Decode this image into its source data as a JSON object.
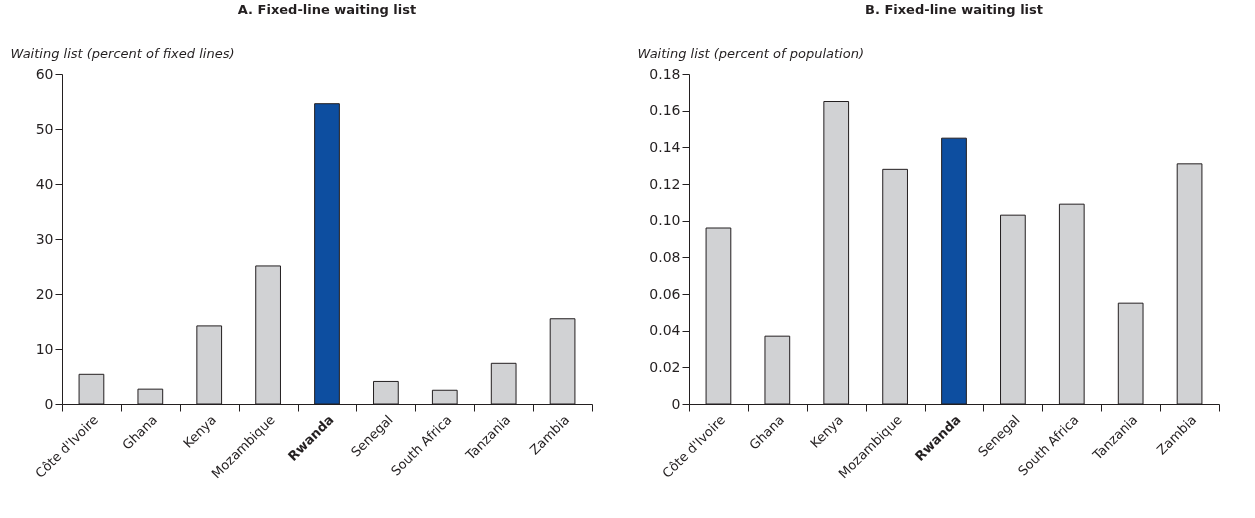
{
  "chart_data": [
    {
      "type": "bar",
      "title": "A. Fixed-line waiting list",
      "ylabel": "Waiting list (percent of fixed lines)",
      "categories": [
        "Côte d'Ivoire",
        "Ghana",
        "Kenya",
        "Mozambique",
        "Rwanda",
        "Senegal",
        "South Africa",
        "Tanzania",
        "Zambia"
      ],
      "values": [
        5.4,
        2.7,
        14.2,
        25.1,
        54.6,
        4.1,
        2.5,
        7.4,
        15.5
      ],
      "colors": [
        "#d1d2d4",
        "#d1d2d4",
        "#d1d2d4",
        "#d1d2d4",
        "#0d4ea0",
        "#d1d2d4",
        "#d1d2d4",
        "#d1d2d4",
        "#d1d2d4"
      ],
      "ylim": [
        0,
        60
      ],
      "yticks": [
        0,
        10,
        20,
        30,
        40,
        50,
        60
      ],
      "grid": false
    },
    {
      "type": "bar",
      "title": "B. Fixed-line waiting list",
      "ylabel": "Waiting list (percent of population)",
      "categories": [
        "Côte d'Ivoire",
        "Ghana",
        "Kenya",
        "Mozambique",
        "Rwanda",
        "Senegal",
        "South Africa",
        "Tanzania",
        "Zambia"
      ],
      "values": [
        0.096,
        0.037,
        0.165,
        0.128,
        0.145,
        0.103,
        0.109,
        0.055,
        0.131
      ],
      "colors": [
        "#d1d2d4",
        "#d1d2d4",
        "#d1d2d4",
        "#d1d2d4",
        "#0d4ea0",
        "#d1d2d4",
        "#d1d2d4",
        "#d1d2d4",
        "#d1d2d4"
      ],
      "ylim": [
        0,
        0.18
      ],
      "yticks": [
        0,
        {
          "value": 0.02,
          "label": "0.02"
        },
        {
          "value": 0.04,
          "label": "0.04"
        },
        {
          "value": 0.06,
          "label": "0.06"
        },
        {
          "value": 0.08,
          "label": "0.08"
        },
        {
          "value": 0.1,
          "label": "0.10"
        },
        {
          "value": 0.12,
          "label": "0.12"
        },
        {
          "value": 0.14,
          "label": "0.14"
        },
        {
          "value": 0.16,
          "label": "0.16"
        },
        {
          "value": 0.18,
          "label": "0.18"
        }
      ],
      "grid": false
    }
  ]
}
